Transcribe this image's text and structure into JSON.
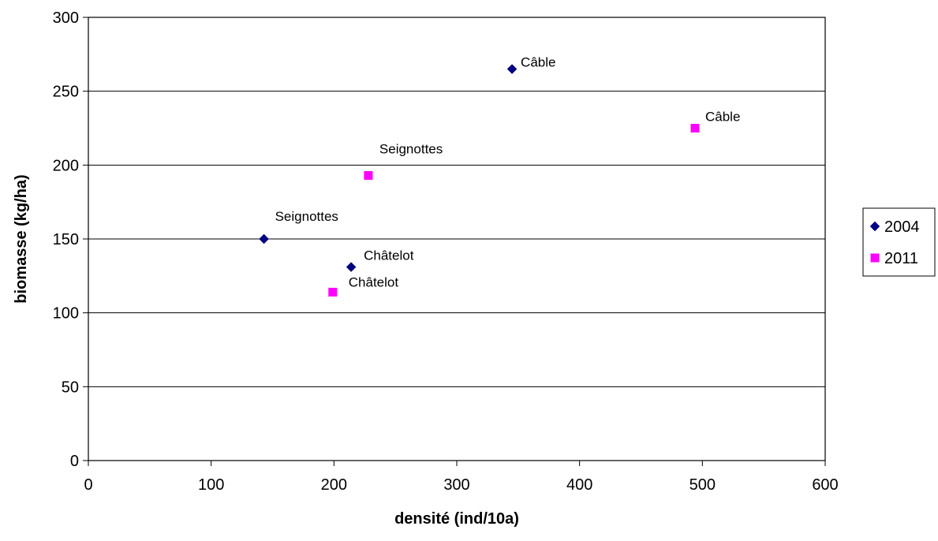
{
  "chart_data": {
    "type": "scatter",
    "title": "",
    "xlabel": "densité (ind/10a)",
    "ylabel": "biomasse (kg/ha)",
    "xlim": [
      0,
      600
    ],
    "ylim": [
      0,
      300
    ],
    "x_ticks": [
      0,
      100,
      200,
      300,
      400,
      500,
      600
    ],
    "y_ticks": [
      0,
      50,
      100,
      150,
      200,
      250,
      300
    ],
    "grid": "horizontal",
    "legend_position": "right",
    "series": [
      {
        "name": "2004",
        "color": "#000080",
        "marker": "diamond",
        "points": [
          {
            "x": 143,
            "y": 150,
            "label": "Seignottes"
          },
          {
            "x": 214,
            "y": 131,
            "label": "Châtelot"
          },
          {
            "x": 345,
            "y": 265,
            "label": "Câble"
          }
        ]
      },
      {
        "name": "2011",
        "color": "#ff00ff",
        "marker": "square",
        "points": [
          {
            "x": 228,
            "y": 193,
            "label": "Seignottes"
          },
          {
            "x": 199,
            "y": 114,
            "label": "Châtelot"
          },
          {
            "x": 494,
            "y": 225,
            "label": "Câble"
          }
        ]
      }
    ]
  }
}
